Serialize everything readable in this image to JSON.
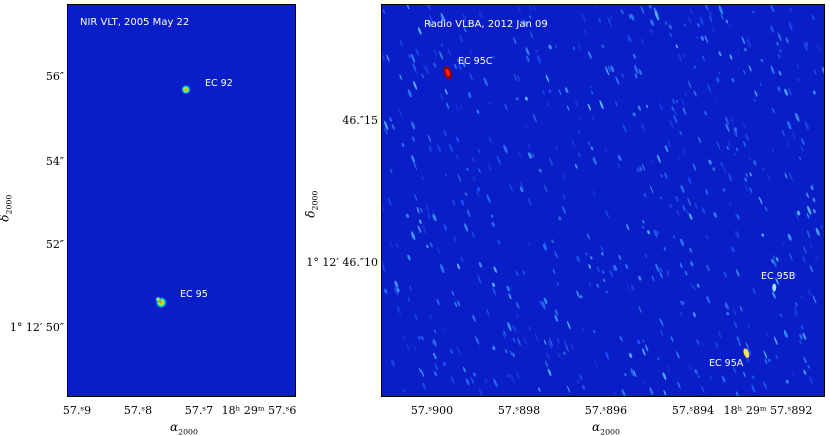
{
  "colors": {
    "background": "#0a1ec8",
    "frame": "#000000",
    "label": "#ffffff"
  },
  "left_panel": {
    "title": "NIR VLT, 2005 May 22",
    "sources": [
      {
        "name": "EC 92"
      },
      {
        "name": "EC 95"
      }
    ],
    "y_ticks": [
      "56″",
      "54″",
      "52″",
      "1° 12′ 50″"
    ],
    "x_ticks": [
      "57.ˢ9",
      "57.ˢ8",
      "57.ˢ7",
      "18ʰ 29ᵐ 57.ˢ6"
    ],
    "y_axis_label": "δ",
    "y_axis_sub": "2000",
    "x_axis_label": "α",
    "x_axis_sub": "2000"
  },
  "right_panel": {
    "title": "Radio VLBA, 2012 Jan 09",
    "sources": [
      {
        "name": "EC 95C"
      },
      {
        "name": "EC 95B"
      },
      {
        "name": "EC 95A"
      }
    ],
    "y_ticks": [
      "46.″15",
      "1° 12′ 46.″10"
    ],
    "x_ticks": [
      "57.ˢ900",
      "57.ˢ898",
      "57.ˢ896",
      "57.ˢ894",
      "18ʰ 29ᵐ 57.ˢ892"
    ],
    "y_axis_label": "δ",
    "y_axis_sub": "2000",
    "x_axis_label": "α",
    "x_axis_sub": "2000"
  }
}
